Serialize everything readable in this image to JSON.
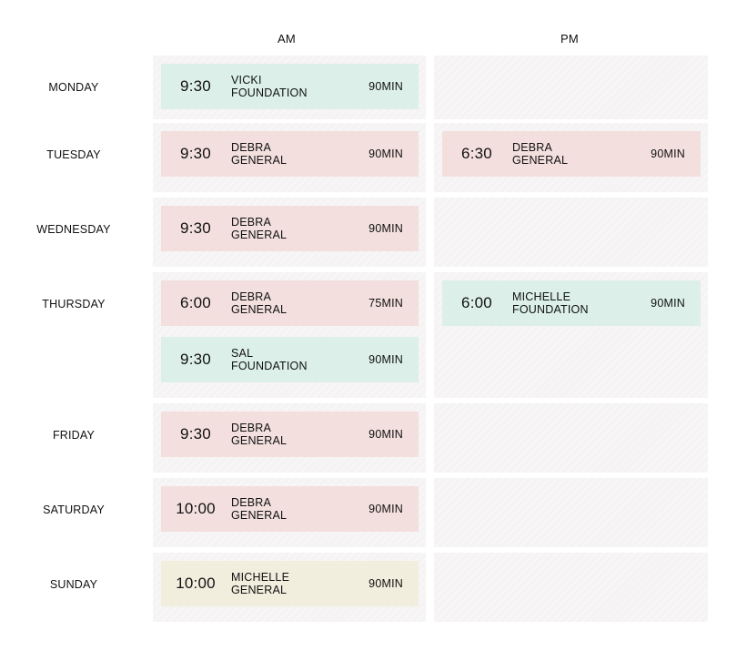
{
  "columns": {
    "am": "AM",
    "pm": "PM"
  },
  "colors": {
    "foundation": "#dcf0e9",
    "general": "#f3e0de",
    "general_alt": "#f1eedd"
  },
  "days": [
    {
      "label": "MONDAY",
      "am": [
        {
          "time": "9:30",
          "name": "VICKI",
          "type": "FOUNDATION",
          "duration": "90MIN",
          "color": "foundation"
        }
      ],
      "pm": []
    },
    {
      "label": "TUESDAY",
      "am": [
        {
          "time": "9:30",
          "name": "DEBRA",
          "type": "GENERAL",
          "duration": "90MIN",
          "color": "general"
        }
      ],
      "pm": [
        {
          "time": "6:30",
          "name": "DEBRA",
          "type": "GENERAL",
          "duration": "90MIN",
          "color": "general"
        }
      ]
    },
    {
      "label": "WEDNESDAY",
      "am": [
        {
          "time": "9:30",
          "name": "DEBRA",
          "type": "GENERAL",
          "duration": "90MIN",
          "color": "general"
        }
      ],
      "pm": []
    },
    {
      "label": "THURSDAY",
      "am": [
        {
          "time": "6:00",
          "name": "DEBRA",
          "type": "GENERAL",
          "duration": "75MIN",
          "color": "general"
        },
        {
          "time": "9:30",
          "name": "SAL",
          "type": "FOUNDATION",
          "duration": "90MIN",
          "color": "foundation"
        }
      ],
      "pm": [
        {
          "time": "6:00",
          "name": "MICHELLE",
          "type": "FOUNDATION",
          "duration": "90MIN",
          "color": "foundation"
        }
      ]
    },
    {
      "label": "FRIDAY",
      "am": [
        {
          "time": "9:30",
          "name": "DEBRA",
          "type": "GENERAL",
          "duration": "90MIN",
          "color": "general"
        }
      ],
      "pm": []
    },
    {
      "label": "SATURDAY",
      "am": [
        {
          "time": "10:00",
          "name": "DEBRA",
          "type": "GENERAL",
          "duration": "90MIN",
          "color": "general"
        }
      ],
      "pm": []
    },
    {
      "label": "SUNDAY",
      "am": [
        {
          "time": "10:00",
          "name": "MICHELLE",
          "type": "GENERAL",
          "duration": "90MIN",
          "color": "general_alt"
        }
      ],
      "pm": []
    }
  ]
}
